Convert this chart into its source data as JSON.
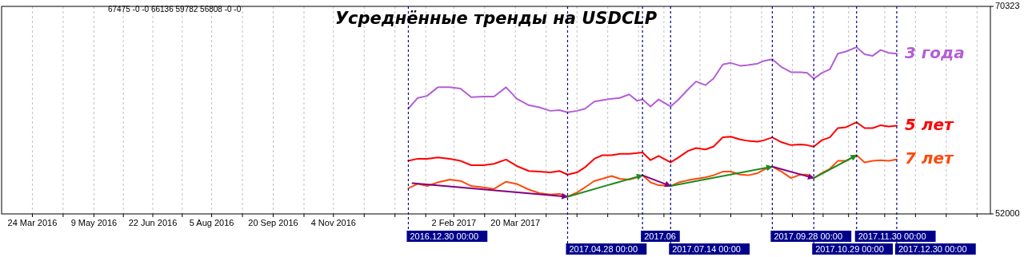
{
  "chart_data": {
    "type": "line",
    "title": "Усреднённые тренды на USDCLP",
    "annotations": [
      "67475 -0 -0 66136 59782 56808 -0 -0"
    ],
    "xlim": [
      "2016-03-01",
      "2018-03-10"
    ],
    "xticks": [
      {
        "value": "2016-03-24",
        "label": "24 Mar 2016"
      },
      {
        "value": "2016-04-16",
        "label": null
      },
      {
        "value": "2016-05-09",
        "label": "9 May 2016"
      },
      {
        "value": "2016-05-31",
        "label": null
      },
      {
        "value": "2016-06-22",
        "label": "22 Jun 2016"
      },
      {
        "value": "2016-07-14",
        "label": null
      },
      {
        "value": "2016-08-05",
        "label": "5 Aug 2016"
      },
      {
        "value": "2016-08-28",
        "label": null
      },
      {
        "value": "2016-09-20",
        "label": "20 Sep 2016"
      },
      {
        "value": "2016-10-13",
        "label": null
      },
      {
        "value": "2016-11-04",
        "label": "4 Nov 2016"
      },
      {
        "value": "2016-11-27",
        "label": null
      },
      {
        "value": "2016-12-20",
        "label": null
      },
      {
        "value": "2017-01-12",
        "label": null
      },
      {
        "value": "2017-02-02",
        "label": "2 Feb 2017"
      },
      {
        "value": "2017-02-25",
        "label": null
      },
      {
        "value": "2017-03-20",
        "label": "20 Mar 2017"
      },
      {
        "value": "2017-04-12",
        "label": null
      },
      {
        "value": "2017-05-05",
        "label": null
      },
      {
        "value": "2017-05-28",
        "label": null
      },
      {
        "value": "2017-06-20",
        "label": null
      },
      {
        "value": "2017-07-09",
        "label": null
      },
      {
        "value": "2017-08-05",
        "label": null
      },
      {
        "value": "2017-08-28",
        "label": null
      },
      {
        "value": "2017-09-20",
        "label": null
      },
      {
        "value": "2017-10-13",
        "label": null
      },
      {
        "value": "2017-11-05",
        "label": null
      },
      {
        "value": "2017-11-24",
        "label": null
      },
      {
        "value": "2017-12-21",
        "label": null
      },
      {
        "value": "2018-01-13",
        "label": null
      },
      {
        "value": "2018-02-05",
        "label": null
      },
      {
        "value": "2018-02-28",
        "label": null
      }
    ],
    "ylim": [
      52000,
      70323
    ],
    "yticks": [
      52000,
      70323
    ],
    "grid": "x",
    "ref_lines": [
      {
        "axis": "x",
        "value": "2016-12-30",
        "label": "2016.12.30 00:00",
        "color": "#00008b",
        "line_style": "dashed"
      },
      {
        "axis": "x",
        "value": "2017-04-28",
        "label": "2017.04.28 00:00",
        "color": "#00008b",
        "line_style": "dashed"
      },
      {
        "axis": "x",
        "value": "2017-06-23",
        "label": "2017.06",
        "color": "#00008b",
        "line_style": "dashed"
      },
      {
        "axis": "x",
        "value": "2017-07-14",
        "label": "2017.07.14 00:00",
        "color": "#00008b",
        "line_style": "dashed"
      },
      {
        "axis": "x",
        "value": "2017-09-28",
        "label": "2017.09.28 00:00",
        "color": "#00008b",
        "line_style": "dashed"
      },
      {
        "axis": "x",
        "value": "2017-10-29",
        "label": "2017.10.29 00:00",
        "color": "#00008b",
        "line_style": "dashed"
      },
      {
        "axis": "x",
        "value": "2017-11-30",
        "label": "2017.11.30 00:00",
        "color": "#00008b",
        "line_style": "dashed"
      },
      {
        "axis": "x",
        "value": "2017-12-30",
        "label": "2017.12.30 00:00",
        "color": "#00008b",
        "line_style": "dashed"
      }
    ],
    "x": [
      "2016-12-30",
      "2017-01-06",
      "2017-01-13",
      "2017-01-21",
      "2017-01-30",
      "2017-02-07",
      "2017-02-15",
      "2017-02-24",
      "2017-03-04",
      "2017-03-13",
      "2017-03-21",
      "2017-03-30",
      "2017-04-07",
      "2017-04-15",
      "2017-04-22",
      "2017-04-28",
      "2017-05-05",
      "2017-05-11",
      "2017-05-18",
      "2017-05-24",
      "2017-05-31",
      "2017-06-06",
      "2017-06-13",
      "2017-06-19",
      "2017-06-23",
      "2017-06-29",
      "2017-07-05",
      "2017-07-14",
      "2017-07-20",
      "2017-07-27",
      "2017-08-02",
      "2017-08-09",
      "2017-08-15",
      "2017-08-22",
      "2017-08-28",
      "2017-09-04",
      "2017-09-10",
      "2017-09-17",
      "2017-09-22",
      "2017-09-28",
      "2017-10-05",
      "2017-10-12",
      "2017-10-19",
      "2017-10-24",
      "2017-10-29",
      "2017-11-04",
      "2017-11-10",
      "2017-11-16",
      "2017-11-22",
      "2017-11-30",
      "2017-12-06",
      "2017-12-12",
      "2017-12-18",
      "2017-12-24",
      "2017-12-30"
    ],
    "series": [
      {
        "name": "3 года",
        "color": "#b35fd6",
        "values": [
          61290,
          62240,
          62420,
          63180,
          63180,
          63060,
          62300,
          62360,
          62360,
          63180,
          62170,
          61600,
          61410,
          61100,
          61160,
          60970,
          61100,
          61290,
          61920,
          62050,
          62170,
          62240,
          62550,
          61980,
          62110,
          61480,
          62110,
          61480,
          62110,
          62990,
          63690,
          63370,
          63940,
          65200,
          65330,
          65080,
          65140,
          65270,
          65520,
          65650,
          64950,
          64510,
          64510,
          64450,
          63940,
          64450,
          64760,
          66150,
          66340,
          66720,
          66090,
          65960,
          66470,
          66220,
          66140
        ]
      },
      {
        "name": "5 лет",
        "color": "#ff0000",
        "values": [
          56680,
          56870,
          56870,
          56990,
          56870,
          56680,
          56300,
          56300,
          56420,
          56800,
          56230,
          55790,
          55730,
          55660,
          55790,
          55470,
          55660,
          56110,
          56870,
          57180,
          57180,
          57310,
          57310,
          57370,
          57430,
          56740,
          57120,
          56550,
          56990,
          57560,
          57810,
          57690,
          57940,
          58760,
          58820,
          58570,
          58440,
          58380,
          58510,
          58760,
          58320,
          58070,
          58130,
          58070,
          57940,
          58510,
          58760,
          59580,
          59650,
          60090,
          59580,
          59580,
          59830,
          59710,
          59780
        ]
      },
      {
        "name": "7 лет",
        "color": "#ff4a0a",
        "values": [
          54270,
          54650,
          54460,
          54780,
          55030,
          54910,
          54460,
          54340,
          54210,
          54840,
          54650,
          54150,
          53830,
          53710,
          53770,
          53520,
          53900,
          54340,
          54910,
          55100,
          55350,
          55100,
          55030,
          55220,
          55410,
          54780,
          54530,
          54460,
          54780,
          54970,
          55100,
          55220,
          55410,
          55730,
          55730,
          55470,
          55410,
          55600,
          55920,
          56170,
          55730,
          55160,
          55470,
          55470,
          55160,
          55600,
          55980,
          56680,
          56680,
          57180,
          56550,
          56680,
          56740,
          56680,
          56810
        ]
      },
      {
        "color": "#800080",
        "x": [
          "2017-01-02",
          "2017-04-28"
        ],
        "values": [
          54720,
          53520
        ]
      },
      {
        "color": "#1e8c1e",
        "x": [
          "2017-04-28",
          "2017-06-23"
        ],
        "values": [
          53520,
          55410
        ]
      },
      {
        "color": "#800080",
        "x": [
          "2017-06-23",
          "2017-07-14"
        ],
        "values": [
          55410,
          54460
        ]
      },
      {
        "color": "#1e8c1e",
        "x": [
          "2017-07-14",
          "2017-09-28"
        ],
        "values": [
          54460,
          56170
        ]
      },
      {
        "color": "#800080",
        "x": [
          "2017-09-28",
          "2017-10-29"
        ],
        "values": [
          56170,
          55160
        ]
      },
      {
        "color": "#1e8c1e",
        "x": [
          "2017-10-29",
          "2017-11-30"
        ],
        "values": [
          55160,
          57180
        ]
      }
    ]
  }
}
